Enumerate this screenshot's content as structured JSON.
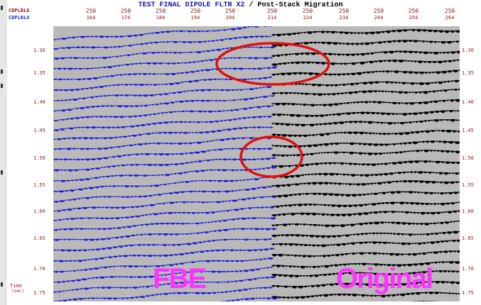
{
  "title": {
    "left": "TEST FINAL DIPOLE FLTR X2",
    "sep": "/",
    "right": "Post-Stack Migration"
  },
  "header_labels": {
    "row1": "CDPLBLG",
    "row2": "CDPLBLX"
  },
  "cdp_top": [
    "250",
    "250",
    "250",
    "250",
    "250",
    "250",
    "250",
    "250",
    "250",
    "250",
    "250"
  ],
  "cdp_bottom": [
    "164",
    "174",
    "184",
    "194",
    "204",
    "214",
    "224",
    "234",
    "244",
    "254",
    "264"
  ],
  "time_ticks": [
    "1.30",
    "1.35",
    "1.40",
    "1.45",
    "1.50",
    "1.55",
    "1.60",
    "1.65",
    "1.70",
    "1.75"
  ],
  "time_axis_label": "Time",
  "time_axis_unit": "(sec)",
  "panel_labels": {
    "left": "FBE",
    "right": "Original"
  },
  "colors": {
    "fbe_wiggle": "#1a1adc",
    "original_wiggle": "#000000",
    "background": "#b9b9b9",
    "highlight": "#e01010",
    "label": "#ff33ff",
    "tick_text": "#8a1a1a"
  }
}
